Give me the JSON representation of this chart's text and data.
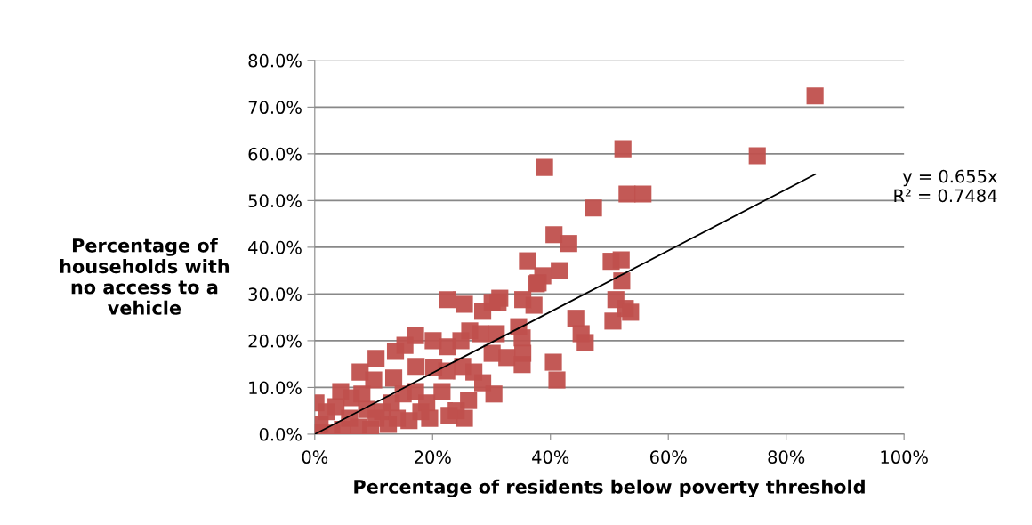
{
  "chart_data": {
    "type": "scatter",
    "xlabel": "Percentage of residents below poverty threshold",
    "ylabel": "Percentage of\nhouseholds with\nno access to a\nvehicle",
    "xlim": [
      0,
      100
    ],
    "ylim": [
      0,
      80
    ],
    "xticks": [
      {
        "value": 0,
        "label": "0%"
      },
      {
        "value": 20,
        "label": "20%"
      },
      {
        "value": 40,
        "label": "40%"
      },
      {
        "value": 60,
        "label": "60%"
      },
      {
        "value": 80,
        "label": "80%"
      },
      {
        "value": 100,
        "label": "100%"
      }
    ],
    "yticks": [
      {
        "value": 0,
        "label": "0.0%"
      },
      {
        "value": 10,
        "label": "10.0%"
      },
      {
        "value": 20,
        "label": "20.0%"
      },
      {
        "value": 30,
        "label": "30.0%"
      },
      {
        "value": 40,
        "label": "40.0%"
      },
      {
        "value": 50,
        "label": "50.0%"
      },
      {
        "value": 60,
        "label": "60.0%"
      },
      {
        "value": 70,
        "label": "70.0%"
      },
      {
        "value": 80,
        "label": "80.0%"
      }
    ],
    "grid": "y",
    "legend": false,
    "series": [
      {
        "marker": "square",
        "color": "#c0504d",
        "x": [
          84.9,
          75.1,
          52.3,
          39.0,
          47.3,
          53.0,
          55.7,
          40.6,
          43.1,
          41.5,
          38.7,
          37.9,
          50.3,
          52.0,
          52.1,
          51.1,
          52.7,
          53.6,
          50.6,
          44.3,
          45.2,
          45.9,
          40.5,
          41.1,
          37.2,
          36.1,
          37.6,
          22.5,
          25.4,
          31.4,
          30.1,
          35.3,
          28.5,
          31.1,
          17.1,
          15.3,
          13.7,
          20.1,
          22.5,
          24.8,
          26.3,
          28.1,
          30.8,
          34.6,
          35.2,
          35.3,
          30.1,
          32.6,
          35.2,
          10.4,
          7.7,
          10.0,
          17.2,
          13.4,
          20.2,
          22.4,
          25.1,
          27.0,
          28.5,
          30.4,
          26.1,
          24.0,
          25.4,
          22.8,
          21.6,
          19.0,
          17.1,
          15.0,
          13.0,
          11.5,
          18.0,
          19.5,
          16.0,
          0.2,
          2.0,
          4.4,
          6.2,
          3.6,
          8.0,
          8.8,
          5.9,
          7.4,
          9.5,
          0.9,
          2.9,
          4.7,
          0.5,
          10.4,
          12.5,
          14.0
        ],
        "values": [
          72.4,
          59.6,
          61.1,
          57.1,
          48.4,
          51.4,
          51.4,
          42.7,
          40.8,
          35.0,
          33.9,
          32.4,
          37.0,
          37.3,
          32.8,
          28.8,
          26.9,
          26.1,
          24.2,
          24.8,
          21.5,
          19.6,
          15.4,
          11.6,
          27.6,
          37.1,
          32.2,
          28.8,
          27.8,
          29.1,
          28.2,
          28.8,
          26.3,
          28.2,
          21.1,
          19.0,
          17.7,
          20.0,
          18.7,
          20.0,
          22.1,
          21.5,
          21.5,
          23.0,
          20.6,
          17.3,
          17.3,
          16.4,
          14.9,
          16.2,
          13.3,
          11.6,
          14.5,
          12.0,
          14.3,
          13.5,
          14.5,
          13.3,
          11.0,
          8.6,
          7.2,
          5.0,
          3.4,
          4.0,
          9.1,
          6.7,
          9.1,
          8.6,
          6.7,
          4.8,
          4.8,
          3.4,
          2.9,
          6.7,
          4.8,
          9.1,
          7.8,
          5.9,
          8.6,
          5.3,
          3.4,
          1.5,
          1.0,
          2.1,
          0.2,
          1.0,
          0.3,
          3.4,
          2.1,
          3.4
        ]
      },
      {
        "type": "line",
        "marker": "none",
        "line_style": "solid",
        "color": "#000000",
        "x": [
          0,
          84.9
        ],
        "values": [
          0,
          55.6
        ]
      }
    ],
    "annotations": [
      "y = 0.655x\nR² = 0.7484"
    ]
  }
}
